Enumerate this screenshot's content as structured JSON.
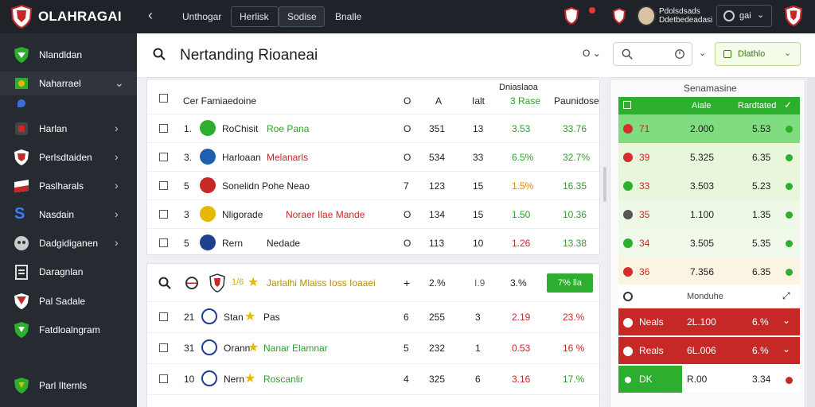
{
  "app": {
    "brand": "OLAHRAGAI"
  },
  "topbar": {
    "tabs": [
      "Unthogar",
      "Herlisk",
      "Sodise",
      "Bnalle"
    ],
    "user_name_line1": "Pdolsdsads",
    "user_name_line2": "Ddetbedeadasi",
    "user_btn_label": "gai"
  },
  "sidebar": {
    "items": [
      {
        "label": "Nlandldan",
        "icon": "shield-icon"
      },
      {
        "label": "Naharrael",
        "icon": "flag-icon"
      },
      {
        "label": "Harlan",
        "icon": "badge-icon"
      },
      {
        "label": "Perlsdtaiden",
        "icon": "crest-icon"
      },
      {
        "label": "Paslharals",
        "icon": "banner-icon"
      },
      {
        "label": "Nasdain",
        "icon": "letter-s-icon"
      },
      {
        "label": "Dadgidiganen",
        "icon": "mask-icon"
      },
      {
        "label": "Daragnlan",
        "icon": "clipboard-icon"
      },
      {
        "label": "Pal Sadale",
        "icon": "emblem-icon"
      },
      {
        "label": "Fatdloalngram",
        "icon": "shield-icon"
      },
      {
        "label": "Parl Ilternls",
        "icon": "shield-icon"
      }
    ]
  },
  "header": {
    "title": "Nertanding Rioaneai",
    "toggle_label": "O",
    "search_placeholder": "",
    "filter_label": "Dlathlo"
  },
  "table1": {
    "header": {
      "name": "Cer Famiaedoine",
      "c1": "O",
      "c2": "A",
      "c3": "Ialt",
      "c4a": "Dniaslaoa",
      "c4b": "3 Rase",
      "c5": "Paunidose"
    },
    "rows": [
      {
        "rank": "1.",
        "name": "RoChisit",
        "name2": "Roe Pana",
        "c1": "O",
        "c2": "351",
        "c3": "13",
        "c4": "3.53",
        "c5": "33.76",
        "c4c": "green",
        "c5c": "green"
      },
      {
        "rank": "3.",
        "name": "Harloaan",
        "name2": "Melanarls",
        "c1": "O",
        "c2": "534",
        "c3": "33",
        "c4": "6.5%",
        "c5": "32.7%",
        "c4c": "green",
        "c5c": "green"
      },
      {
        "rank": "5",
        "name": "Sonelidn",
        "name2": "Pohe Neao",
        "c1": "7",
        "c2": "123",
        "c3": "15",
        "c4": "1.5%",
        "c5": "16.35",
        "c4c": "orange",
        "c5c": "green"
      },
      {
        "rank": "3",
        "name": "Nligorade",
        "name2": "Noraer Ilae Mande",
        "c1": "O",
        "c2": "134",
        "c3": "15",
        "c4": "1.50",
        "c5": "10.36",
        "c4c": "green",
        "c5c": "green"
      },
      {
        "rank": "5",
        "name": "Rern",
        "name2": "Nedade",
        "c1": "O",
        "c2": "113",
        "c3": "10",
        "c4": "1.26",
        "c5": "13.38",
        "c4c": "red",
        "c5c": "green"
      }
    ]
  },
  "table2": {
    "header": {
      "name": "Jarlalhi Mlaiss Ioss Ioaaei",
      "c1": "+",
      "c2": "2.%",
      "c3": "I.9",
      "c4": "3.%",
      "btn": "7% lla"
    },
    "rows": [
      {
        "rank": "21",
        "name": "Stan",
        "name2": "Pas",
        "c1": "6",
        "c2": "255",
        "c3": "3",
        "c4": "2.19",
        "c5": "23.%",
        "c4c": "red",
        "c5c": "red"
      },
      {
        "rank": "31",
        "name": "Orann",
        "name2": "Nanar Elamnar",
        "c1": "5",
        "c2": "232",
        "c3": "1",
        "c4": "0.53",
        "c5": "16 %",
        "c4c": "red",
        "c5c": "red"
      },
      {
        "rank": "10",
        "name": "Nern",
        "name2": "Roscanlir",
        "c1": "4",
        "c2": "325",
        "c3": "6",
        "c4": "3.16",
        "c5": "17.%",
        "c4c": "red",
        "c5c": "green"
      }
    ]
  },
  "right_panel": {
    "title": "Senamasine",
    "header": {
      "c1": "Aiale",
      "c2": "Rardtated"
    },
    "rows": [
      {
        "num": "71",
        "val": "2.000",
        "pct": "5.53",
        "bg": "#7fdc7f",
        "icon": "#d32f2f"
      },
      {
        "num": "39",
        "val": "5.325",
        "pct": "6.35",
        "bg": "#e8f7dc",
        "icon": "#d32f2f"
      },
      {
        "num": "33",
        "val": "3.503",
        "pct": "5.23",
        "bg": "#e8f7dc",
        "icon": "#2eae2e"
      },
      {
        "num": "35",
        "val": "1.100",
        "pct": "1.35",
        "bg": "#eef8e6",
        "icon": "#555555"
      },
      {
        "num": "34",
        "val": "3.505",
        "pct": "5.35",
        "bg": "#f1f9ea",
        "icon": "#2eae2e"
      },
      {
        "num": "36",
        "val": "7.356",
        "pct": "6.35",
        "bg": "#fbf4e3",
        "icon": "#d32f2f"
      }
    ],
    "section_label": "Monduhe",
    "bottom_rows": [
      {
        "label": "Neals",
        "val": "2L.100",
        "pct": "6.%"
      },
      {
        "label": "Reals",
        "val": "6L.006",
        "pct": "6.%"
      },
      {
        "label": "DK",
        "val": "R.00",
        "pct": "3.34"
      }
    ]
  },
  "colors": {
    "accent_green": "#2eae2e",
    "danger_red": "#c62828",
    "sidebar_bg": "#262a31"
  }
}
